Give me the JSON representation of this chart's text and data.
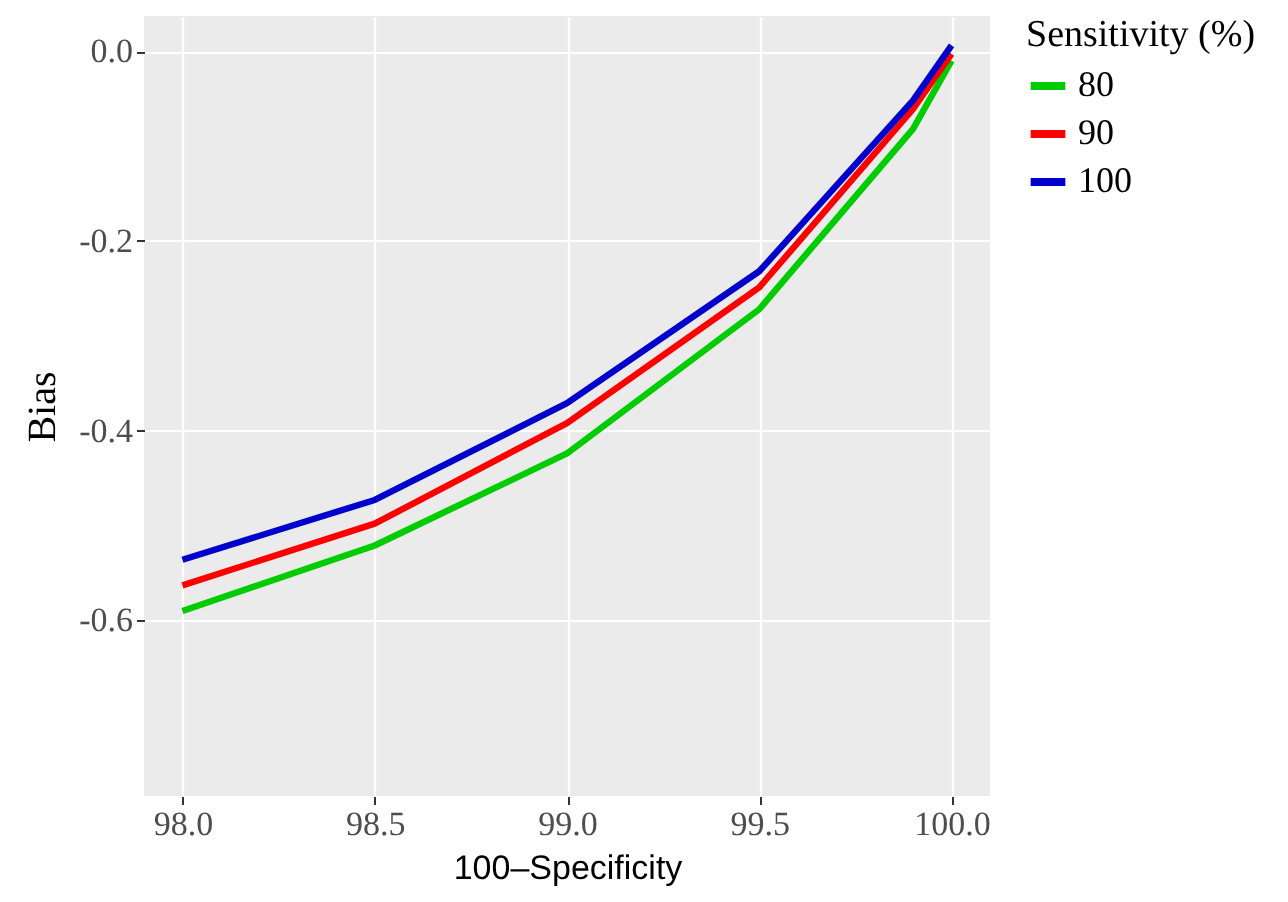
{
  "chart_data": {
    "type": "line",
    "xlabel": "100–Specificity",
    "ylabel": "Bias",
    "legend_title": "Sensitivity (%)",
    "x": [
      98.0,
      98.5,
      99.0,
      99.5,
      99.9,
      100.0
    ],
    "series": [
      {
        "name": "80",
        "color": "#00cc00",
        "values": [
          -0.59,
          -0.521,
          -0.424,
          -0.272,
          -0.082,
          -0.01
        ]
      },
      {
        "name": "90",
        "color": "#ff0000",
        "values": [
          -0.563,
          -0.498,
          -0.392,
          -0.249,
          -0.061,
          -0.003
        ]
      },
      {
        "name": "100",
        "color": "#0000cc",
        "values": [
          -0.536,
          -0.473,
          -0.371,
          -0.232,
          -0.052,
          0.006
        ]
      }
    ],
    "xlim": [
      97.9,
      100.1
    ],
    "xticks": [
      {
        "value": 98,
        "label": "98.0"
      },
      98.5,
      {
        "value": 99,
        "label": "99.0"
      },
      99.5,
      {
        "value": 100,
        "label": "100.0"
      }
    ],
    "ylim": [
      -0.785,
      0.037
    ],
    "yticks": [
      {
        "value": -0.6,
        "label": "-0.6"
      },
      {
        "value": -0.4,
        "label": "-0.4"
      },
      {
        "value": -0.2,
        "label": "-0.2"
      },
      {
        "value": 0,
        "label": "0.0"
      }
    ],
    "grid": true,
    "legend": "right",
    "line_style": "solid",
    "marker": "none"
  }
}
